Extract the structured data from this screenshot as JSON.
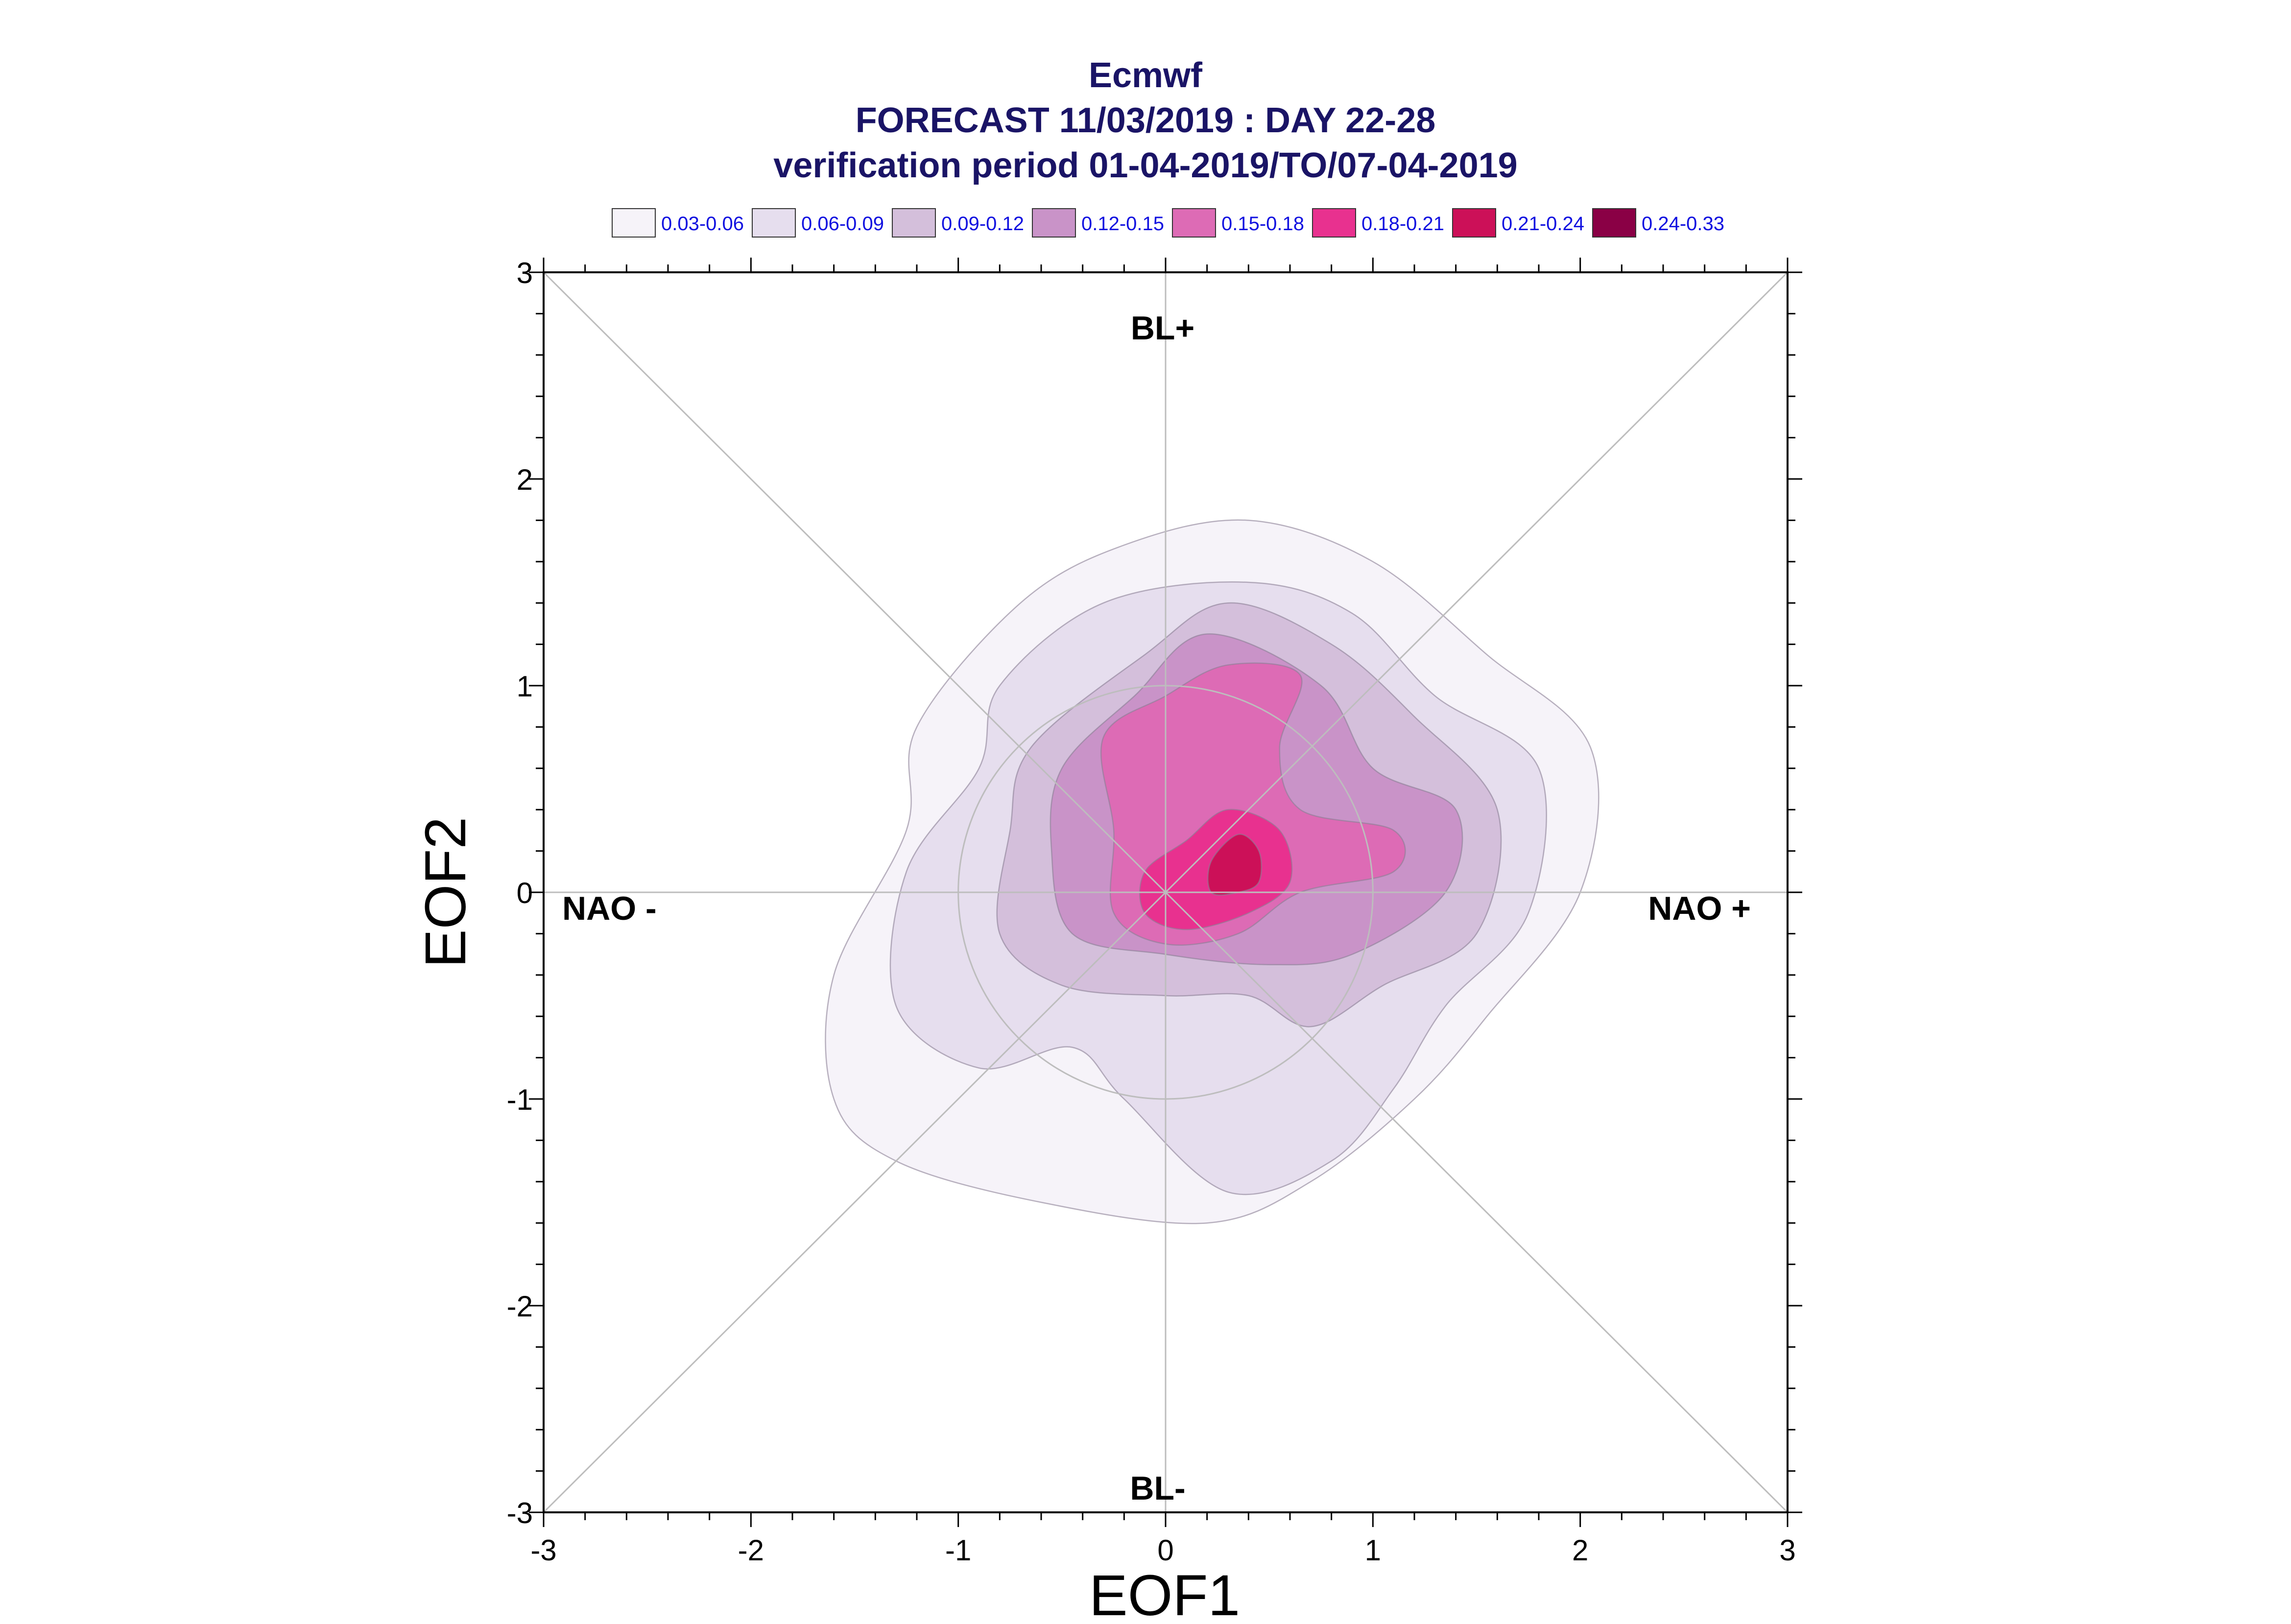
{
  "title": {
    "line1": "Ecmwf",
    "line2": "FORECAST 11/03/2019 : DAY 22-28",
    "line3": "verification period 01-04-2019/TO/07-04-2019"
  },
  "legend": [
    {
      "label": "0.03-0.06",
      "color": "#f6f3f9"
    },
    {
      "label": "0.06-0.09",
      "color": "#e6deee"
    },
    {
      "label": "0.09-0.12",
      "color": "#d4bfdb"
    },
    {
      "label": "0.12-0.15",
      "color": "#c993c8"
    },
    {
      "label": "0.15-0.18",
      "color": "#dd6bb5"
    },
    {
      "label": "0.18-0.21",
      "color": "#e8318f"
    },
    {
      "label": "0.21-0.24",
      "color": "#cc1058"
    },
    {
      "label": "0.24-0.33",
      "color": "#8a0045"
    }
  ],
  "chart_data": {
    "type": "heatmap",
    "xlabel": "EOF1",
    "ylabel": "EOF2",
    "xlim": [
      -3,
      3
    ],
    "ylim": [
      -3,
      3
    ],
    "x_ticks": [
      "-3",
      "-2",
      "-1",
      "0",
      "1",
      "2",
      "3"
    ],
    "y_ticks": [
      "-3",
      "-2",
      "-1",
      "0",
      "1",
      "2",
      "3"
    ],
    "regime_labels": {
      "top": "BL+",
      "bottom": "BL-",
      "left": "NAO -",
      "right": "NAO +"
    },
    "reference_circle_radius": 1,
    "density_maximum_location": [
      0.35,
      0.15
    ],
    "contour_levels": [
      {
        "level": "0.03-0.06",
        "outline": [
          [
            0.4,
            1.8
          ],
          [
            1.0,
            1.6
          ],
          [
            1.55,
            1.15
          ],
          [
            2.05,
            0.7
          ],
          [
            2.0,
            0.0
          ],
          [
            1.55,
            -0.6
          ],
          [
            1.2,
            -1.0
          ],
          [
            0.7,
            -1.4
          ],
          [
            0.2,
            -1.6
          ],
          [
            -0.6,
            -1.5
          ],
          [
            -1.3,
            -1.3
          ],
          [
            -1.6,
            -1.0
          ],
          [
            -1.6,
            -0.4
          ],
          [
            -1.25,
            0.3
          ],
          [
            -1.2,
            0.8
          ],
          [
            -0.7,
            1.4
          ],
          [
            -0.2,
            1.68
          ]
        ]
      },
      {
        "level": "0.06-0.09",
        "outline": [
          [
            0.4,
            1.5
          ],
          [
            0.9,
            1.35
          ],
          [
            1.3,
            0.95
          ],
          [
            1.8,
            0.6
          ],
          [
            1.75,
            -0.1
          ],
          [
            1.35,
            -0.55
          ],
          [
            1.1,
            -0.95
          ],
          [
            0.8,
            -1.3
          ],
          [
            0.3,
            -1.45
          ],
          [
            -0.2,
            -1.0
          ],
          [
            -0.45,
            -0.75
          ],
          [
            -0.9,
            -0.85
          ],
          [
            -1.3,
            -0.55
          ],
          [
            -1.25,
            0.1
          ],
          [
            -0.9,
            0.6
          ],
          [
            -0.8,
            1.0
          ],
          [
            -0.3,
            1.4
          ]
        ]
      },
      {
        "level": "0.09-0.12",
        "outline": [
          [
            0.3,
            1.4
          ],
          [
            0.8,
            1.2
          ],
          [
            1.2,
            0.85
          ],
          [
            1.6,
            0.4
          ],
          [
            1.5,
            -0.2
          ],
          [
            1.05,
            -0.45
          ],
          [
            0.7,
            -0.65
          ],
          [
            0.4,
            -0.5
          ],
          [
            0.0,
            -0.5
          ],
          [
            -0.5,
            -0.45
          ],
          [
            -0.8,
            -0.2
          ],
          [
            -0.75,
            0.3
          ],
          [
            -0.65,
            0.7
          ],
          [
            -0.1,
            1.15
          ]
        ]
      },
      {
        "level": "0.12-0.15",
        "outline": [
          [
            0.2,
            1.25
          ],
          [
            0.75,
            1.0
          ],
          [
            1.0,
            0.6
          ],
          [
            1.4,
            0.4
          ],
          [
            1.35,
            0.0
          ],
          [
            0.9,
            -0.3
          ],
          [
            0.5,
            -0.35
          ],
          [
            0.0,
            -0.3
          ],
          [
            -0.45,
            -0.2
          ],
          [
            -0.55,
            0.2
          ],
          [
            -0.5,
            0.6
          ],
          [
            -0.15,
            0.95
          ]
        ]
      },
      {
        "level": "0.15-0.18",
        "outline": [
          [
            0.3,
            1.1
          ],
          [
            0.65,
            1.05
          ],
          [
            0.55,
            0.7
          ],
          [
            0.65,
            0.4
          ],
          [
            1.1,
            0.3
          ],
          [
            1.1,
            0.1
          ],
          [
            0.65,
            0.0
          ],
          [
            0.35,
            -0.2
          ],
          [
            0.0,
            -0.25
          ],
          [
            -0.25,
            -0.1
          ],
          [
            -0.25,
            0.3
          ],
          [
            -0.3,
            0.75
          ],
          [
            0.0,
            0.95
          ]
        ]
      },
      {
        "level": "0.18-0.21",
        "outline": [
          [
            0.3,
            0.4
          ],
          [
            0.55,
            0.3
          ],
          [
            0.6,
            0.05
          ],
          [
            0.4,
            -0.1
          ],
          [
            0.1,
            -0.18
          ],
          [
            -0.1,
            -0.1
          ],
          [
            -0.1,
            0.1
          ],
          [
            0.1,
            0.25
          ]
        ]
      },
      {
        "level": "0.21-0.24",
        "outline": [
          [
            0.35,
            0.28
          ],
          [
            0.45,
            0.2
          ],
          [
            0.45,
            0.05
          ],
          [
            0.35,
            0.0
          ],
          [
            0.22,
            0.0
          ],
          [
            0.22,
            0.15
          ]
        ]
      }
    ]
  }
}
